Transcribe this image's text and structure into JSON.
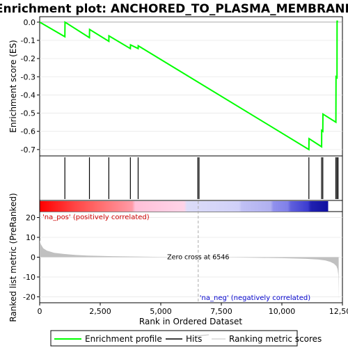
{
  "title": "Enrichment plot: ANCHORED_TO_PLASMA_MEMBRANE",
  "colors": {
    "es_line": "#00ff00",
    "hits": "#000000",
    "ranking": "#c0c0c0",
    "zero_cross": "#aaaaaa"
  },
  "chart_data": [
    {
      "name": "enrichment-profile",
      "type": "line",
      "ylabel": "Enrichment score (ES)",
      "xlim": [
        0,
        12500
      ],
      "ylim": [
        -0.735,
        0.03
      ],
      "yticks": [
        0.0,
        -0.1,
        -0.2,
        -0.3,
        -0.4,
        -0.5,
        -0.6,
        -0.7
      ],
      "ytick_labels": [
        "0.0",
        "-0.1",
        "-0.2",
        "-0.3",
        "-0.4",
        "-0.5",
        "-0.6",
        "-0.7"
      ],
      "x": [
        0,
        1040,
        1045,
        2055,
        2060,
        2855,
        2860,
        3745,
        3750,
        4065,
        4070,
        11115,
        11120,
        11640,
        11645,
        11690,
        11695,
        12230,
        12235,
        12275,
        12280,
        12320
      ],
      "y": [
        0.0,
        -0.08,
        0.0,
        -0.085,
        -0.04,
        -0.105,
        -0.075,
        -0.145,
        -0.125,
        -0.145,
        -0.13,
        -0.7,
        -0.64,
        -0.685,
        -0.595,
        -0.6,
        -0.505,
        -0.55,
        -0.3,
        -0.305,
        0.005,
        0.005
      ]
    },
    {
      "name": "hits",
      "type": "scatter",
      "x": [
        1040,
        2055,
        2855,
        3745,
        4065,
        6530,
        6580,
        11115,
        11640,
        11690,
        12230,
        12275,
        12320
      ]
    },
    {
      "name": "ranked-list-metric",
      "type": "area",
      "ylabel": "Ranked list metric (PreRanked)",
      "xlabel": "Rank in Ordered Dataset",
      "xlim": [
        0,
        12500
      ],
      "ylim": [
        -23,
        23
      ],
      "yticks": [
        20,
        10,
        0,
        -10,
        -20
      ],
      "ytick_labels": [
        "20",
        "10",
        "0",
        "-10",
        "-20"
      ],
      "xticks": [
        0,
        2500,
        5000,
        7500,
        10000,
        12500
      ],
      "xtick_labels": [
        "0",
        "2,500",
        "5,000",
        "7,500",
        "10,000",
        "12,500"
      ],
      "x": [
        0,
        50,
        150,
        300,
        600,
        1000,
        1500,
        2000,
        3000,
        4000,
        5000,
        6000,
        6546,
        7000,
        8000,
        9000,
        10000,
        10500,
        11000,
        11500,
        11800,
        12000,
        12150,
        12250,
        12300,
        12330,
        12345,
        12346
      ],
      "y": [
        8.5,
        6.5,
        4.5,
        3.3,
        2.2,
        1.6,
        1.1,
        0.8,
        0.5,
        0.3,
        0.15,
        0.05,
        0.0,
        -0.05,
        -0.15,
        -0.3,
        -0.5,
        -0.65,
        -0.85,
        -1.2,
        -1.7,
        -2.4,
        -3.3,
        -4.5,
        -6.0,
        -9.0,
        -21.5,
        0
      ],
      "zero_cross": 6546,
      "annotations": {
        "pos": "'na_pos' (positively correlated)",
        "neg": "'na_neg' (negatively correlated)",
        "zero": "Zero cross at 6546"
      }
    }
  ],
  "legend": {
    "items": [
      {
        "label": "Enrichment profile"
      },
      {
        "label": "Hits"
      },
      {
        "label": "Ranking metric scores"
      }
    ]
  }
}
